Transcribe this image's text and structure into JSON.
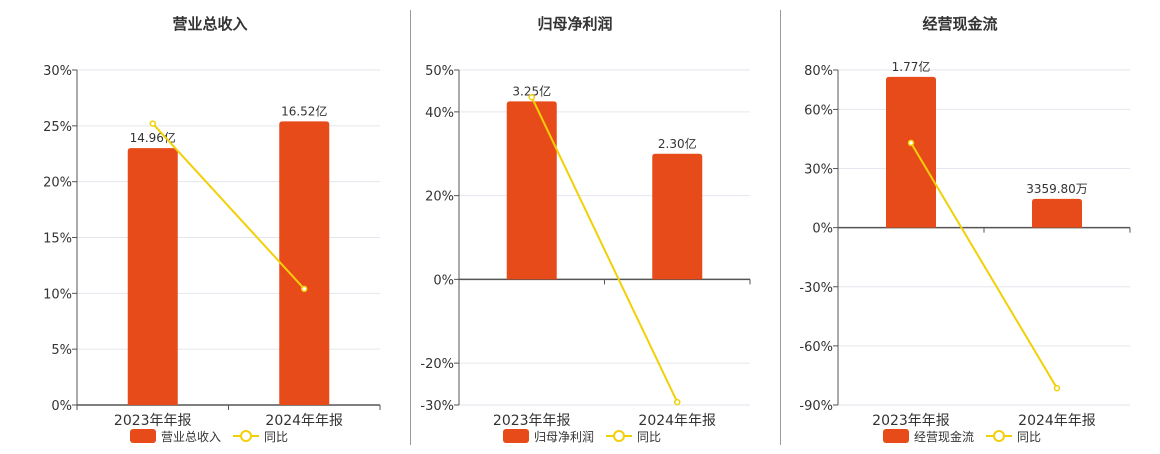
{
  "colors": {
    "bar": "#E84B1A",
    "line": "#F2D008",
    "grid": "#E3E6EE",
    "axis": "#555555",
    "text": "#333333"
  },
  "chart_data": [
    {
      "type": "bar",
      "title": "营业总收入",
      "categories": [
        "2023年年报",
        "2024年年报"
      ],
      "bar_labels": [
        "14.96亿",
        "16.52亿"
      ],
      "bar_series_name": "营业总收入",
      "line_series_name": "同比",
      "yticks": [
        0,
        5,
        10,
        15,
        20,
        25,
        30
      ],
      "ytick_labels": [
        "0%",
        "5%",
        "10%",
        "15%",
        "20%",
        "25%",
        "30%"
      ],
      "ylim": [
        0,
        30
      ],
      "line_values": [
        25.2,
        10.4
      ],
      "bar_values_on_axis": [
        23.0,
        25.4
      ]
    },
    {
      "type": "bar",
      "title": "归母净利润",
      "categories": [
        "2023年年报",
        "2024年年报"
      ],
      "bar_labels": [
        "3.25亿",
        "2.30亿"
      ],
      "bar_series_name": "归母净利润",
      "line_series_name": "同比",
      "yticks": [
        -30,
        -20,
        0,
        20,
        40,
        50
      ],
      "ytick_labels": [
        "-30%",
        "-20%",
        "0%",
        "20%",
        "40%",
        "50%"
      ],
      "ylim": [
        -30,
        50
      ],
      "line_values": [
        43.5,
        -29.3
      ],
      "bar_values_on_axis": [
        42.5,
        30.0
      ]
    },
    {
      "type": "bar",
      "title": "经营现金流",
      "categories": [
        "2023年年报",
        "2024年年报"
      ],
      "bar_labels": [
        "1.77亿",
        "3359.80万"
      ],
      "bar_series_name": "经营现金流",
      "line_series_name": "同比",
      "yticks": [
        -90,
        -60,
        -30,
        0,
        30,
        60,
        80
      ],
      "ytick_labels": [
        "-90%",
        "-60%",
        "-30%",
        "0%",
        "30%",
        "60%",
        "80%"
      ],
      "ylim": [
        -90,
        80
      ],
      "line_values": [
        43,
        -81.5
      ],
      "bar_values_on_axis": [
        76.5,
        14.6
      ]
    }
  ]
}
